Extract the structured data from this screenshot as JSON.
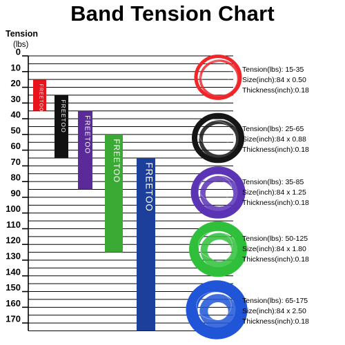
{
  "chart_data": {
    "type": "bar",
    "title": "Band Tension Chart",
    "ylabel": "Tension",
    "yunit": "(lbs)",
    "ylim": [
      0,
      175
    ],
    "yticks": [
      0,
      10,
      20,
      30,
      40,
      50,
      60,
      70,
      80,
      90,
      100,
      110,
      120,
      130,
      140,
      150,
      160,
      170
    ],
    "grid": true,
    "brand_text": "FREETOO",
    "series": [
      {
        "color": "#e8141c",
        "range": [
          15,
          35
        ]
      },
      {
        "color": "#111111",
        "range": [
          25,
          65
        ]
      },
      {
        "color": "#5a2a98",
        "range": [
          35,
          85
        ]
      },
      {
        "color": "#3aaa35",
        "range": [
          50,
          125
        ]
      },
      {
        "color": "#1c3f9c",
        "range": [
          65,
          175
        ]
      }
    ]
  },
  "bands": [
    {
      "tension": "Tension(lbs): 15-35",
      "size": "Size(inch):84 x 0.50",
      "thickness": "Thickness(inch):0.18",
      "color": "#f0262a"
    },
    {
      "tension": "Tension(lbs): 25-65",
      "size": "Size(inch):84 x 0.88",
      "thickness": "Thickness(inch):0.18",
      "color": "#151515"
    },
    {
      "tension": "Tension(lbs): 35-85",
      "size": "Size(inch):84 x 1.25",
      "thickness": "Thickness(inch):0.18",
      "color": "#5b33b5"
    },
    {
      "tension": "Tension(lbs): 50-125",
      "size": "Size(inch):84 x 1.80",
      "thickness": "Thickness(inch):0.18",
      "color": "#2fbf3a"
    },
    {
      "tension": "Tension(lbs): 65-175",
      "size": "Size(inch):84 x 2.50",
      "thickness": "Thickness(inch):0.18",
      "color": "#1f55d6"
    }
  ]
}
